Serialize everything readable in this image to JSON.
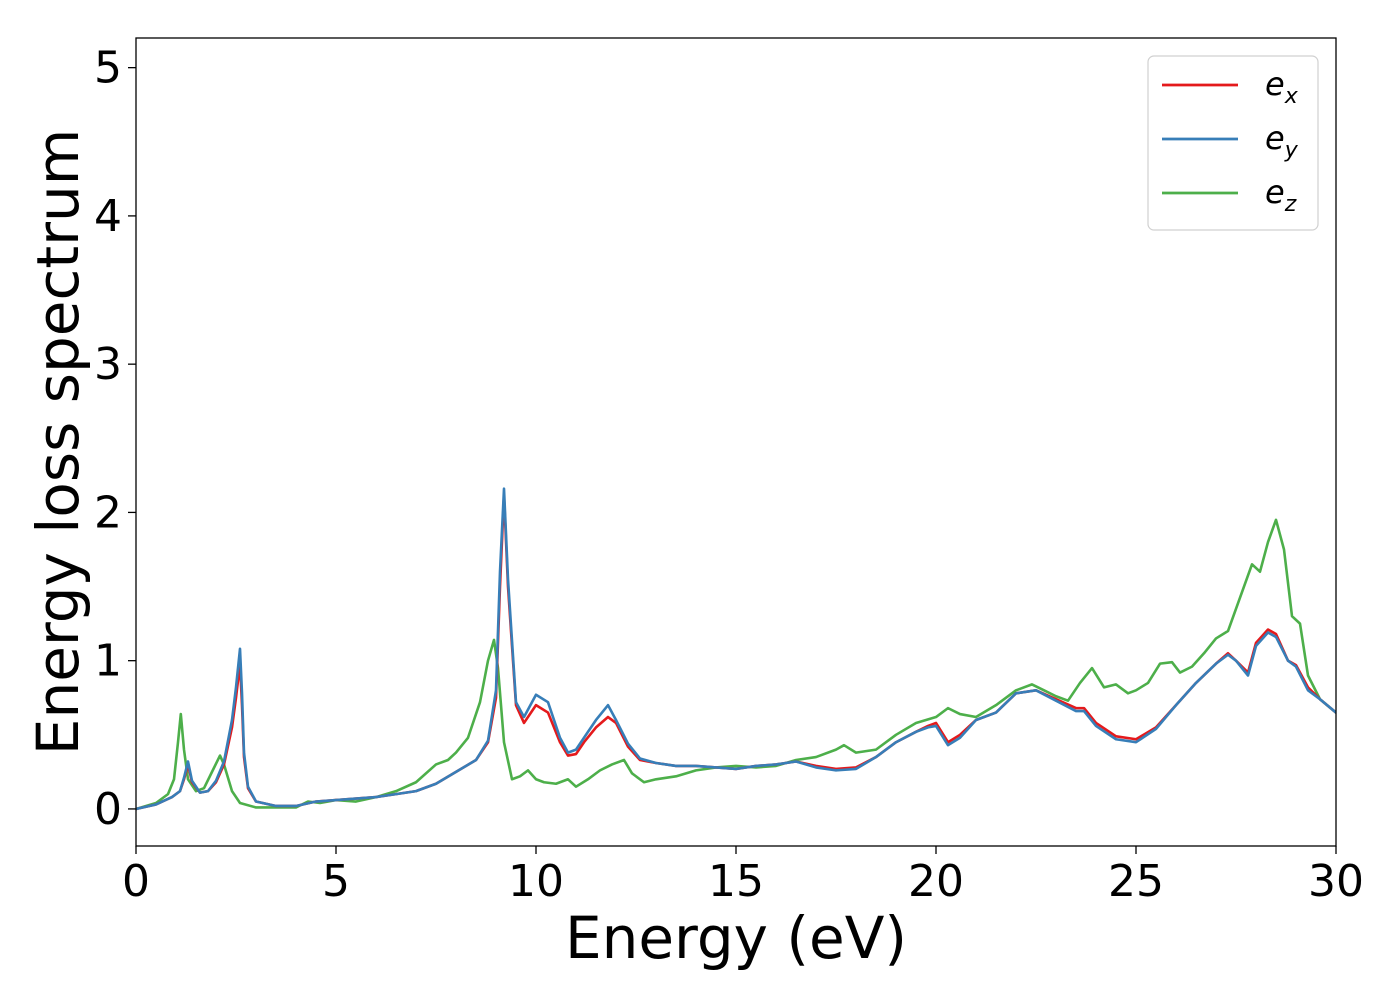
{
  "chart_data": {
    "type": "line",
    "title": "",
    "xlabel": "Energy (eV)",
    "ylabel": "Energy loss spectrum",
    "xlim": [
      0,
      30
    ],
    "ylim": [
      -0.25,
      5.2
    ],
    "xticks": [
      0,
      5,
      10,
      15,
      20,
      25,
      30
    ],
    "yticks": [
      0,
      1,
      2,
      3,
      4,
      5
    ],
    "grid": false,
    "legend_position": "top-right",
    "series": [
      {
        "name": "e_x",
        "label_main": "e",
        "label_sub": "x",
        "color": "#e41a1c",
        "x": [
          0,
          0.5,
          0.9,
          1.1,
          1.2,
          1.3,
          1.4,
          1.6,
          1.8,
          2.0,
          2.2,
          2.4,
          2.5,
          2.6,
          2.65,
          2.7,
          2.8,
          3.0,
          3.5,
          4.0,
          4.5,
          5.0,
          5.5,
          6.0,
          6.5,
          7.0,
          7.5,
          8.0,
          8.5,
          8.8,
          9.0,
          9.1,
          9.2,
          9.3,
          9.5,
          9.7,
          10.0,
          10.3,
          10.6,
          10.8,
          11.0,
          11.2,
          11.5,
          11.8,
          12.0,
          12.3,
          12.6,
          13.0,
          13.5,
          14.0,
          14.5,
          15.0,
          15.5,
          16.0,
          16.5,
          17.0,
          17.5,
          18.0,
          18.5,
          19.0,
          19.5,
          19.8,
          20.0,
          20.3,
          20.6,
          21.0,
          21.5,
          22.0,
          22.5,
          23.0,
          23.5,
          23.7,
          24.0,
          24.5,
          25.0,
          25.5,
          26.0,
          26.5,
          27.0,
          27.3,
          27.5,
          27.8,
          28.0,
          28.3,
          28.5,
          28.8,
          29.0,
          29.3,
          29.6,
          30.0
        ],
        "y": [
          0.0,
          0.03,
          0.08,
          0.12,
          0.2,
          0.3,
          0.18,
          0.11,
          0.12,
          0.18,
          0.3,
          0.55,
          0.75,
          0.98,
          0.7,
          0.35,
          0.14,
          0.05,
          0.02,
          0.02,
          0.05,
          0.06,
          0.07,
          0.08,
          0.1,
          0.12,
          0.17,
          0.25,
          0.33,
          0.45,
          0.75,
          1.5,
          2.12,
          1.5,
          0.7,
          0.58,
          0.7,
          0.65,
          0.45,
          0.36,
          0.37,
          0.45,
          0.55,
          0.62,
          0.58,
          0.42,
          0.33,
          0.31,
          0.29,
          0.29,
          0.28,
          0.27,
          0.29,
          0.3,
          0.32,
          0.29,
          0.27,
          0.28,
          0.35,
          0.45,
          0.52,
          0.56,
          0.58,
          0.45,
          0.5,
          0.6,
          0.65,
          0.78,
          0.8,
          0.74,
          0.68,
          0.68,
          0.58,
          0.49,
          0.47,
          0.55,
          0.7,
          0.85,
          0.98,
          1.05,
          1.0,
          0.92,
          1.12,
          1.21,
          1.18,
          1.0,
          0.97,
          0.82,
          0.74,
          0.65
        ]
      },
      {
        "name": "e_y",
        "label_main": "e",
        "label_sub": "y",
        "color": "#377eb8",
        "x": [
          0,
          0.5,
          0.9,
          1.1,
          1.2,
          1.3,
          1.4,
          1.6,
          1.8,
          2.0,
          2.2,
          2.4,
          2.5,
          2.6,
          2.65,
          2.7,
          2.8,
          3.0,
          3.5,
          4.0,
          4.5,
          5.0,
          5.5,
          6.0,
          6.5,
          7.0,
          7.5,
          8.0,
          8.5,
          8.8,
          9.0,
          9.1,
          9.2,
          9.3,
          9.5,
          9.7,
          10.0,
          10.3,
          10.6,
          10.8,
          11.0,
          11.2,
          11.5,
          11.8,
          12.0,
          12.3,
          12.6,
          13.0,
          13.5,
          14.0,
          14.5,
          15.0,
          15.5,
          16.0,
          16.5,
          17.0,
          17.5,
          18.0,
          18.5,
          19.0,
          19.5,
          19.8,
          20.0,
          20.3,
          20.6,
          21.0,
          21.5,
          22.0,
          22.5,
          23.0,
          23.5,
          23.7,
          24.0,
          24.5,
          25.0,
          25.5,
          26.0,
          26.5,
          27.0,
          27.3,
          27.5,
          27.8,
          28.0,
          28.3,
          28.5,
          28.8,
          29.0,
          29.3,
          29.6,
          30.0
        ],
        "y": [
          0.0,
          0.03,
          0.08,
          0.12,
          0.21,
          0.32,
          0.19,
          0.11,
          0.12,
          0.19,
          0.32,
          0.6,
          0.82,
          1.08,
          0.78,
          0.38,
          0.15,
          0.05,
          0.02,
          0.02,
          0.05,
          0.06,
          0.07,
          0.08,
          0.1,
          0.12,
          0.17,
          0.25,
          0.33,
          0.46,
          0.8,
          1.6,
          2.16,
          1.55,
          0.72,
          0.62,
          0.77,
          0.72,
          0.48,
          0.38,
          0.4,
          0.48,
          0.6,
          0.7,
          0.6,
          0.44,
          0.34,
          0.31,
          0.29,
          0.29,
          0.28,
          0.27,
          0.29,
          0.3,
          0.32,
          0.28,
          0.26,
          0.27,
          0.35,
          0.45,
          0.52,
          0.55,
          0.56,
          0.43,
          0.48,
          0.6,
          0.65,
          0.78,
          0.8,
          0.73,
          0.66,
          0.66,
          0.56,
          0.47,
          0.45,
          0.54,
          0.7,
          0.85,
          0.98,
          1.04,
          1.0,
          0.9,
          1.1,
          1.19,
          1.16,
          1.0,
          0.96,
          0.8,
          0.74,
          0.65
        ]
      },
      {
        "name": "e_z",
        "label_main": "e",
        "label_sub": "z",
        "color": "#4daf4a",
        "x": [
          0,
          0.5,
          0.8,
          0.95,
          1.05,
          1.12,
          1.2,
          1.3,
          1.5,
          1.7,
          1.9,
          2.1,
          2.2,
          2.4,
          2.6,
          3.0,
          3.5,
          4.0,
          4.3,
          4.6,
          5.0,
          5.5,
          6.0,
          6.5,
          7.0,
          7.5,
          7.8,
          8.0,
          8.3,
          8.6,
          8.8,
          8.95,
          9.05,
          9.2,
          9.4,
          9.6,
          9.8,
          10.0,
          10.2,
          10.5,
          10.8,
          11.0,
          11.3,
          11.6,
          11.9,
          12.2,
          12.4,
          12.7,
          13.0,
          13.5,
          14.0,
          14.5,
          15.0,
          15.5,
          16.0,
          16.5,
          17.0,
          17.5,
          17.7,
          18.0,
          18.5,
          19.0,
          19.5,
          20.0,
          20.3,
          20.6,
          21.0,
          21.5,
          22.0,
          22.4,
          22.7,
          23.0,
          23.3,
          23.6,
          23.9,
          24.2,
          24.5,
          24.8,
          25.0,
          25.3,
          25.6,
          25.9,
          26.1,
          26.4,
          26.7,
          27.0,
          27.3,
          27.5,
          27.7,
          27.9,
          28.1,
          28.3,
          28.5,
          28.7,
          28.9,
          29.1,
          29.3,
          29.6,
          30.0
        ],
        "y": [
          0.0,
          0.04,
          0.1,
          0.2,
          0.45,
          0.64,
          0.4,
          0.2,
          0.12,
          0.14,
          0.25,
          0.36,
          0.3,
          0.12,
          0.04,
          0.01,
          0.01,
          0.01,
          0.05,
          0.04,
          0.06,
          0.05,
          0.08,
          0.12,
          0.18,
          0.3,
          0.33,
          0.38,
          0.48,
          0.72,
          1.0,
          1.14,
          0.95,
          0.45,
          0.2,
          0.22,
          0.26,
          0.2,
          0.18,
          0.17,
          0.2,
          0.15,
          0.2,
          0.26,
          0.3,
          0.33,
          0.24,
          0.18,
          0.2,
          0.22,
          0.26,
          0.28,
          0.29,
          0.28,
          0.29,
          0.33,
          0.35,
          0.4,
          0.43,
          0.38,
          0.4,
          0.5,
          0.58,
          0.62,
          0.68,
          0.64,
          0.62,
          0.7,
          0.8,
          0.84,
          0.8,
          0.76,
          0.73,
          0.85,
          0.95,
          0.82,
          0.84,
          0.78,
          0.8,
          0.85,
          0.98,
          0.99,
          0.92,
          0.96,
          1.05,
          1.15,
          1.2,
          1.35,
          1.5,
          1.65,
          1.6,
          1.8,
          1.95,
          1.75,
          1.3,
          1.25,
          0.9,
          0.74,
          0.65
        ]
      }
    ]
  }
}
